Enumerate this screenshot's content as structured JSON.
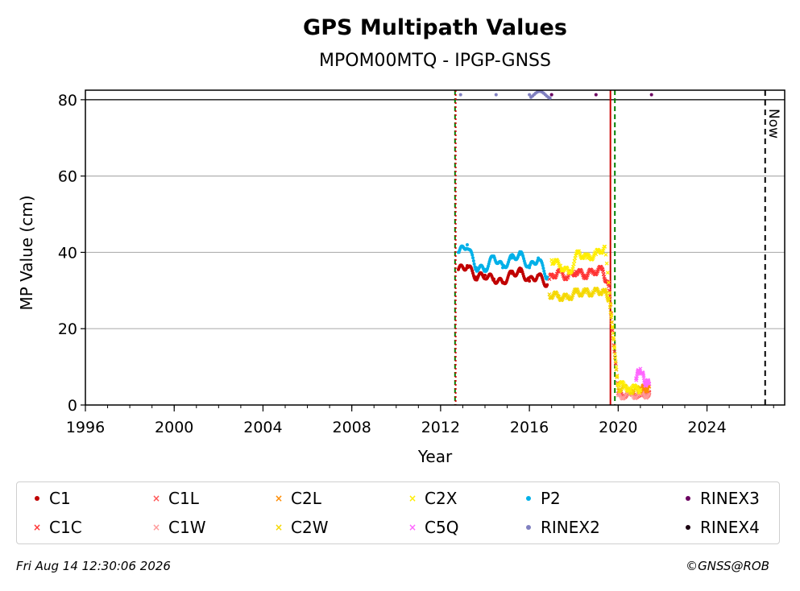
{
  "chart_data": {
    "type": "scatter",
    "title": "GPS Multipath Values",
    "subtitle": "MPOM00MTQ - IPGP-GNSS",
    "xlabel": "Year",
    "ylabel": "MP Value (cm)",
    "xlim": [
      1996,
      2027.5
    ],
    "ylim": [
      0,
      82.5
    ],
    "x_ticks": [
      "1996",
      "2000",
      "2004",
      "2008",
      "2012",
      "2016",
      "2020",
      "2024"
    ],
    "y_ticks": [
      "0",
      "20",
      "40",
      "60",
      "80"
    ],
    "grid": "horizontal",
    "now_label": "Now",
    "now_year": 2026.62,
    "event_lines": [
      {
        "year": 2012.65,
        "color": "#008000",
        "style": "dashed"
      },
      {
        "year": 2012.68,
        "color": "#cc0000",
        "style": "dotted"
      },
      {
        "year": 2019.65,
        "color": "#cc0000",
        "style": "solid"
      },
      {
        "year": 2019.85,
        "color": "#008000",
        "style": "dashed"
      }
    ],
    "series": [
      {
        "name": "C1",
        "color": "#c00000",
        "marker": "dot",
        "x": [
          2012.8,
          2013.2,
          2013.6,
          2014.0,
          2014.4,
          2014.8,
          2015.2,
          2015.6,
          2016.0,
          2016.4,
          2016.8
        ],
        "y": [
          35.5,
          36.5,
          33.5,
          34.0,
          33.0,
          32.0,
          34.5,
          35.0,
          32.5,
          34.0,
          31.5
        ]
      },
      {
        "name": "C1C",
        "color": "#ff3333",
        "marker": "x",
        "x": [
          2016.9,
          2017.3,
          2017.7,
          2018.1,
          2018.5,
          2018.9,
          2019.3,
          2019.6,
          2020.0,
          2020.5,
          2021.0,
          2021.4
        ],
        "y": [
          33.0,
          35.0,
          33.5,
          35.0,
          34.0,
          35.0,
          35.5,
          30.0,
          3.0,
          2.8,
          3.0,
          3.2
        ]
      },
      {
        "name": "C1L",
        "color": "#ff5555",
        "marker": "x",
        "x": [
          2020.9,
          2021.2,
          2021.4
        ],
        "y": [
          3.5,
          3.2,
          3.4
        ]
      },
      {
        "name": "C1W",
        "color": "#ff9a9a",
        "marker": "x",
        "x": [
          2020.0,
          2020.5,
          2021.0,
          2021.4
        ],
        "y": [
          2.5,
          2.6,
          2.7,
          2.8
        ]
      },
      {
        "name": "C2L",
        "color": "#ff8c00",
        "marker": "x",
        "x": [
          2020.9,
          2021.2,
          2021.4
        ],
        "y": [
          4.5,
          4.2,
          4.8
        ]
      },
      {
        "name": "C2W",
        "color": "#f5d800",
        "marker": "x",
        "x": [
          2016.9,
          2017.3,
          2017.7,
          2018.1,
          2018.5,
          2018.9,
          2019.3,
          2019.6,
          2020.0,
          2020.5,
          2021.0
        ],
        "y": [
          29.0,
          28.5,
          28.0,
          29.5,
          29.5,
          29.5,
          30.0,
          28.0,
          4.5,
          4.0,
          3.8
        ]
      },
      {
        "name": "C2X",
        "color": "#ffee00",
        "marker": "x",
        "x": [
          2017.0,
          2017.4,
          2017.8,
          2018.2,
          2018.6,
          2019.0,
          2019.4,
          2020.0,
          2020.5,
          2021.0
        ],
        "y": [
          38.0,
          36.5,
          34.5,
          40.0,
          38.5,
          39.5,
          41.5,
          5.5,
          4.5,
          4.0
        ]
      },
      {
        "name": "C5Q",
        "color": "#ff66ff",
        "marker": "x",
        "x": [
          2020.8,
          2021.0,
          2021.2,
          2021.4
        ],
        "y": [
          7.0,
          9.5,
          6.0,
          5.5
        ]
      },
      {
        "name": "P2",
        "color": "#00b0e8",
        "marker": "dot",
        "x": [
          2012.8,
          2013.2,
          2013.6,
          2014.0,
          2014.4,
          2014.8,
          2015.2,
          2015.6,
          2016.0,
          2016.4,
          2016.8
        ],
        "y": [
          40.0,
          42.0,
          36.0,
          35.5,
          39.0,
          36.0,
          38.5,
          39.5,
          36.0,
          38.5,
          33.5
        ]
      },
      {
        "name": "RINEX2",
        "color": "#8080c0",
        "marker": "dot",
        "x": [
          2012.9,
          2014.5,
          2016.0,
          2017.0
        ],
        "y": [
          81.3,
          81.3,
          81.3,
          81.3
        ]
      },
      {
        "name": "RINEX3",
        "color": "#6b0060",
        "marker": "dot",
        "x": [
          2017.0,
          2019.0,
          2021.5
        ],
        "y": [
          81.3,
          81.3,
          81.3
        ]
      },
      {
        "name": "RINEX4",
        "color": "#1a0010",
        "marker": "dot",
        "x": [],
        "y": []
      }
    ]
  },
  "footer": {
    "timestamp": "Fri Aug 14 12:30:06 2026",
    "copyright": "©GNSS@ROB"
  }
}
